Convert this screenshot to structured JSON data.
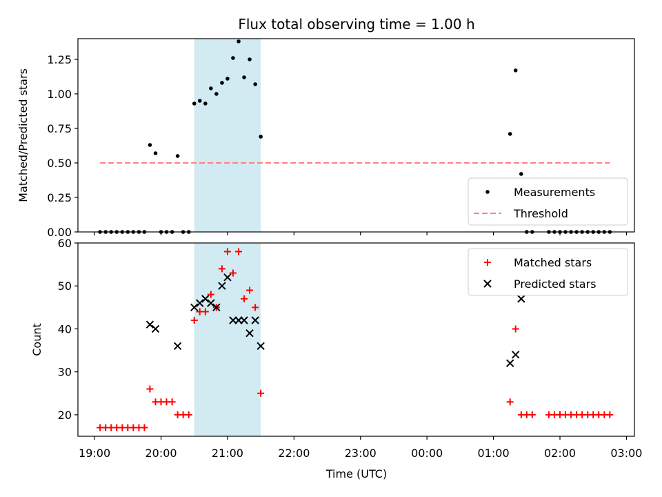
{
  "chart_data": [
    {
      "type": "scatter",
      "title": "Flux total observing time = 1.00 h",
      "xlabel": "",
      "ylabel": "Matched/Predicted stars",
      "ylim": [
        0,
        1.4
      ],
      "yticks": [
        "0.00",
        "0.25",
        "0.50",
        "0.75",
        "1.00",
        "1.25"
      ],
      "xlim": [
        -0.25,
        8.12
      ],
      "shaded_span": [
        1.5,
        2.5
      ],
      "shade_color": "#add8e6",
      "legend_position": "lower right",
      "series": [
        {
          "name": "Measurements",
          "color": "#000000",
          "marker": "dot",
          "points": [
            [
              0.083,
              0
            ],
            [
              0.167,
              0
            ],
            [
              0.25,
              0
            ],
            [
              0.333,
              0
            ],
            [
              0.417,
              0
            ],
            [
              0.5,
              0
            ],
            [
              0.583,
              0
            ],
            [
              0.667,
              0
            ],
            [
              0.75,
              0
            ],
            [
              0.833,
              0.63
            ],
            [
              0.917,
              0.57
            ],
            [
              1.0,
              0
            ],
            [
              1.083,
              0
            ],
            [
              1.167,
              0
            ],
            [
              1.25,
              0.55
            ],
            [
              1.333,
              0
            ],
            [
              1.417,
              0
            ],
            [
              1.5,
              0.93
            ],
            [
              1.583,
              0.95
            ],
            [
              1.667,
              0.93
            ],
            [
              1.75,
              1.04
            ],
            [
              1.833,
              1.0
            ],
            [
              1.917,
              1.08
            ],
            [
              2.0,
              1.11
            ],
            [
              2.083,
              1.26
            ],
            [
              2.167,
              1.38
            ],
            [
              2.25,
              1.12
            ],
            [
              2.333,
              1.25
            ],
            [
              2.417,
              1.07
            ],
            [
              2.5,
              0.69
            ],
            [
              6.25,
              0.71
            ],
            [
              6.333,
              1.17
            ],
            [
              6.417,
              0.42
            ],
            [
              6.5,
              0
            ],
            [
              6.583,
              0
            ],
            [
              6.833,
              0
            ],
            [
              6.917,
              0
            ],
            [
              7.0,
              0
            ],
            [
              7.083,
              0
            ],
            [
              7.167,
              0
            ],
            [
              7.25,
              0
            ],
            [
              7.333,
              0
            ],
            [
              7.417,
              0
            ],
            [
              7.5,
              0
            ],
            [
              7.583,
              0
            ],
            [
              7.667,
              0
            ],
            [
              7.75,
              0
            ]
          ]
        },
        {
          "name": "Threshold",
          "color": "#ff7f7f",
          "style": "dashed",
          "points": [
            [
              0.083,
              0.5
            ],
            [
              7.75,
              0.5
            ]
          ]
        }
      ]
    },
    {
      "type": "scatter",
      "title": "",
      "xlabel": "Time (UTC)",
      "ylabel": "Count",
      "ylim": [
        15,
        60
      ],
      "yticks": [
        "20",
        "30",
        "40",
        "50",
        "60"
      ],
      "xlim": [
        -0.25,
        8.12
      ],
      "xticks": [
        {
          "x": 0,
          "label": "19:00"
        },
        {
          "x": 1,
          "label": "20:00"
        },
        {
          "x": 2,
          "label": "21:00"
        },
        {
          "x": 3,
          "label": "22:00"
        },
        {
          "x": 4,
          "label": "23:00"
        },
        {
          "x": 5,
          "label": "00:00"
        },
        {
          "x": 6,
          "label": "01:00"
        },
        {
          "x": 7,
          "label": "02:00"
        },
        {
          "x": 8,
          "label": "03:00"
        }
      ],
      "shaded_span": [
        1.5,
        2.5
      ],
      "shade_color": "#add8e6",
      "legend_position": "upper right",
      "series": [
        {
          "name": "Matched stars",
          "color": "#ff0000",
          "marker": "plus",
          "points": [
            [
              0.083,
              17
            ],
            [
              0.167,
              17
            ],
            [
              0.25,
              17
            ],
            [
              0.333,
              17
            ],
            [
              0.417,
              17
            ],
            [
              0.5,
              17
            ],
            [
              0.583,
              17
            ],
            [
              0.667,
              17
            ],
            [
              0.75,
              17
            ],
            [
              0.833,
              26
            ],
            [
              0.917,
              23
            ],
            [
              1.0,
              23
            ],
            [
              1.083,
              23
            ],
            [
              1.167,
              23
            ],
            [
              1.25,
              20
            ],
            [
              1.333,
              20
            ],
            [
              1.417,
              20
            ],
            [
              1.5,
              42
            ],
            [
              1.583,
              44
            ],
            [
              1.667,
              44
            ],
            [
              1.75,
              48
            ],
            [
              1.833,
              45
            ],
            [
              1.917,
              54
            ],
            [
              2.0,
              58
            ],
            [
              2.083,
              53
            ],
            [
              2.167,
              58
            ],
            [
              2.25,
              47
            ],
            [
              2.333,
              49
            ],
            [
              2.417,
              45
            ],
            [
              2.5,
              25
            ],
            [
              6.25,
              23
            ],
            [
              6.333,
              40
            ],
            [
              6.417,
              20
            ],
            [
              6.5,
              20
            ],
            [
              6.583,
              20
            ],
            [
              6.833,
              20
            ],
            [
              6.917,
              20
            ],
            [
              7.0,
              20
            ],
            [
              7.083,
              20
            ],
            [
              7.167,
              20
            ],
            [
              7.25,
              20
            ],
            [
              7.333,
              20
            ],
            [
              7.417,
              20
            ],
            [
              7.5,
              20
            ],
            [
              7.583,
              20
            ],
            [
              7.667,
              20
            ],
            [
              7.75,
              20
            ]
          ]
        },
        {
          "name": "Predicted stars",
          "color": "#000000",
          "marker": "x",
          "points": [
            [
              0.833,
              41
            ],
            [
              0.917,
              40
            ],
            [
              1.25,
              36
            ],
            [
              1.5,
              45
            ],
            [
              1.583,
              46
            ],
            [
              1.667,
              47
            ],
            [
              1.75,
              46
            ],
            [
              1.833,
              45
            ],
            [
              1.917,
              50
            ],
            [
              2.0,
              52
            ],
            [
              2.083,
              42
            ],
            [
              2.167,
              42
            ],
            [
              2.25,
              42
            ],
            [
              2.333,
              39
            ],
            [
              2.417,
              42
            ],
            [
              2.5,
              36
            ],
            [
              6.25,
              32
            ],
            [
              6.333,
              34
            ],
            [
              6.417,
              47
            ]
          ]
        }
      ]
    }
  ]
}
